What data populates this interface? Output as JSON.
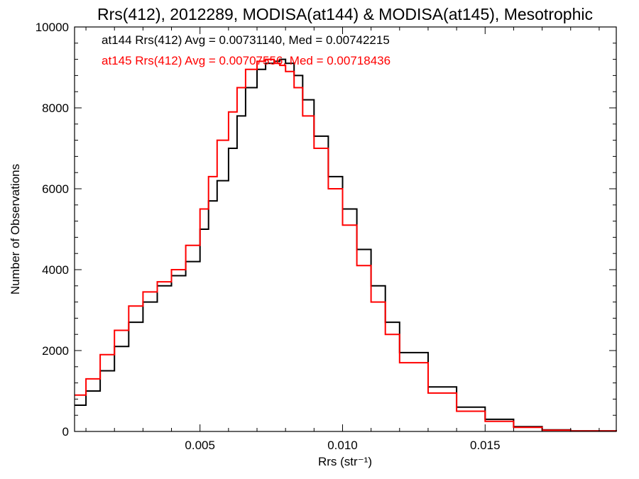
{
  "chart_data": {
    "type": "line",
    "title": "Rrs(412), 2012289, MODISA(at144) & MODISA(at145), Mesotrophic",
    "xlabel": "Rrs (str⁻¹)",
    "ylabel": "Number of Observations",
    "xlim": [
      0.0006,
      0.0196
    ],
    "ylim": [
      0,
      10000
    ],
    "xticks": [
      0.005,
      0.01,
      0.015
    ],
    "xtick_labels": [
      "0.005",
      "0.010",
      "0.015"
    ],
    "yticks": [
      0,
      2000,
      4000,
      6000,
      8000,
      10000
    ],
    "ytick_labels": [
      "0",
      "2000",
      "4000",
      "6000",
      "8000",
      "10000"
    ],
    "grid": false,
    "legend_position": "top-left",
    "annotations": [
      {
        "text": "at144 Rrs(412) Avg = 0.00731140, Med = 0.00742215",
        "color": "#000000"
      },
      {
        "text": "at145 Rrs(412) Avg = 0.00707556, Med = 0.00718436",
        "color": "#ff0000"
      }
    ],
    "series": [
      {
        "color": "#000000",
        "x": [
          0.0006,
          0.001,
          0.0015,
          0.002,
          0.0025,
          0.003,
          0.0035,
          0.004,
          0.0045,
          0.005,
          0.0053,
          0.0056,
          0.006,
          0.0063,
          0.0066,
          0.007,
          0.0073,
          0.0076,
          0.0078,
          0.008,
          0.0083,
          0.0086,
          0.009,
          0.0095,
          0.01,
          0.0105,
          0.011,
          0.0115,
          0.012,
          0.013,
          0.014,
          0.015,
          0.016,
          0.017,
          0.018,
          0.0196
        ],
        "y": [
          650,
          1000,
          1500,
          2100,
          2700,
          3200,
          3600,
          3850,
          4200,
          5000,
          5700,
          6200,
          7000,
          7800,
          8500,
          8950,
          9100,
          9150,
          9200,
          9100,
          8800,
          8200,
          7300,
          6300,
          5500,
          4500,
          3600,
          2700,
          1950,
          1100,
          600,
          300,
          120,
          40,
          15,
          0
        ]
      },
      {
        "color": "#ff0000",
        "x": [
          0.0006,
          0.001,
          0.0015,
          0.002,
          0.0025,
          0.003,
          0.0035,
          0.004,
          0.0045,
          0.005,
          0.0053,
          0.0056,
          0.006,
          0.0063,
          0.0066,
          0.007,
          0.0073,
          0.0076,
          0.0078,
          0.008,
          0.0083,
          0.0086,
          0.009,
          0.0095,
          0.01,
          0.0105,
          0.011,
          0.0115,
          0.012,
          0.013,
          0.014,
          0.015,
          0.016,
          0.017,
          0.018,
          0.0196
        ],
        "y": [
          900,
          1300,
          1900,
          2500,
          3100,
          3450,
          3700,
          4000,
          4600,
          5500,
          6300,
          7200,
          7900,
          8500,
          8950,
          9150,
          9200,
          9100,
          9050,
          8900,
          8500,
          7800,
          7000,
          6000,
          5100,
          4100,
          3200,
          2400,
          1700,
          950,
          500,
          250,
          100,
          30,
          10,
          0
        ]
      }
    ]
  }
}
